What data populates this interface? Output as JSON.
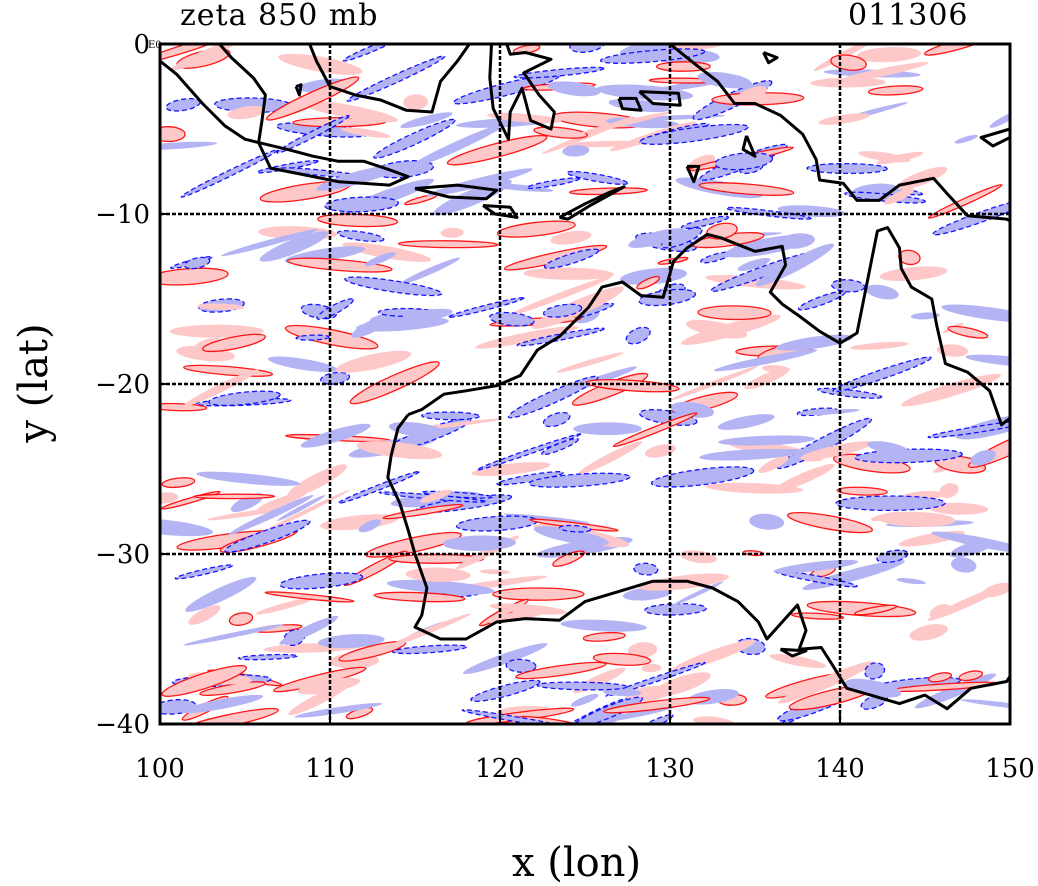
{
  "chart_data": {
    "type": "heatmap",
    "title_left": "zeta 850 mb",
    "title_right": "011306",
    "xlabel": "x (lon)",
    "ylabel": "y (lat)",
    "xlim": [
      100,
      150
    ],
    "ylim": [
      -40,
      0
    ],
    "x_ticks": [
      "100",
      "110",
      "120",
      "130",
      "140",
      "150"
    ],
    "y_ticks": [
      "0",
      "−10",
      "−20",
      "−30",
      "−40"
    ],
    "y_tick_exponent": "E0",
    "grid": true,
    "colors": {
      "positive_fill": "#ffc8c8",
      "positive_line": "#ff0000",
      "negative_fill": "#b4b4f5",
      "negative_line": "#0000ff",
      "coastline": "#000000"
    },
    "coastline_lonlat": [
      [
        [
          114.6,
          -21.8
        ],
        [
          114.0,
          -22.6
        ],
        [
          113.6,
          -24.2
        ],
        [
          113.4,
          -25.5
        ],
        [
          114.1,
          -27.0
        ],
        [
          114.6,
          -28.6
        ],
        [
          115.0,
          -30.0
        ],
        [
          115.7,
          -32.0
        ],
        [
          115.4,
          -33.6
        ],
        [
          115.0,
          -34.3
        ],
        [
          116.5,
          -35.0
        ],
        [
          118.0,
          -35.0
        ],
        [
          119.8,
          -34.0
        ],
        [
          121.5,
          -33.8
        ],
        [
          123.5,
          -33.9
        ],
        [
          125.0,
          -32.8
        ],
        [
          127.0,
          -32.2
        ],
        [
          129.0,
          -31.6
        ],
        [
          131.0,
          -31.6
        ],
        [
          132.5,
          -32.0
        ],
        [
          134.0,
          -32.8
        ],
        [
          135.2,
          -34.0
        ],
        [
          135.7,
          -35.0
        ],
        [
          136.6,
          -34.0
        ],
        [
          137.5,
          -33.0
        ],
        [
          138.0,
          -34.5
        ],
        [
          137.6,
          -35.6
        ],
        [
          138.9,
          -35.5
        ],
        [
          139.6,
          -36.6
        ],
        [
          140.4,
          -37.9
        ],
        [
          141.8,
          -38.3
        ],
        [
          143.5,
          -38.8
        ],
        [
          145.0,
          -38.3
        ],
        [
          146.3,
          -39.1
        ],
        [
          147.7,
          -37.9
        ],
        [
          149.8,
          -37.5
        ],
        [
          150.0,
          -37.2
        ]
      ],
      [
        [
          150.0,
          -22.0
        ],
        [
          149.5,
          -22.4
        ],
        [
          148.8,
          -20.4
        ],
        [
          147.5,
          -19.3
        ],
        [
          146.2,
          -18.8
        ],
        [
          145.7,
          -16.6
        ],
        [
          145.4,
          -15.0
        ],
        [
          144.2,
          -14.3
        ],
        [
          143.6,
          -13.2
        ],
        [
          143.5,
          -12.0
        ],
        [
          142.8,
          -10.8
        ],
        [
          142.2,
          -11.0
        ],
        [
          141.8,
          -13.0
        ],
        [
          141.4,
          -15.0
        ],
        [
          141.0,
          -17.0
        ],
        [
          140.0,
          -17.6
        ],
        [
          138.8,
          -16.9
        ],
        [
          137.6,
          -16.0
        ],
        [
          136.6,
          -15.3
        ],
        [
          135.9,
          -14.6
        ],
        [
          136.8,
          -13.0
        ],
        [
          136.6,
          -11.9
        ],
        [
          135.0,
          -12.2
        ],
        [
          133.0,
          -11.4
        ],
        [
          132.2,
          -11.2
        ],
        [
          131.0,
          -12.0
        ],
        [
          130.2,
          -12.8
        ],
        [
          129.6,
          -14.9
        ],
        [
          128.3,
          -14.8
        ],
        [
          127.2,
          -14.0
        ],
        [
          126.0,
          -14.3
        ],
        [
          125.2,
          -15.5
        ],
        [
          124.3,
          -16.4
        ],
        [
          123.5,
          -17.2
        ],
        [
          122.2,
          -18.0
        ],
        [
          121.2,
          -19.5
        ],
        [
          119.8,
          -20.1
        ],
        [
          118.0,
          -20.4
        ],
        [
          116.7,
          -20.6
        ],
        [
          115.4,
          -21.5
        ],
        [
          114.6,
          -21.8
        ]
      ],
      [
        [
          105.8,
          -5.8
        ],
        [
          107.5,
          -6.2
        ],
        [
          109.0,
          -6.6
        ],
        [
          110.5,
          -6.9
        ],
        [
          112.0,
          -6.9
        ],
        [
          113.5,
          -7.4
        ],
        [
          114.6,
          -7.8
        ],
        [
          113.5,
          -8.3
        ],
        [
          112.0,
          -8.2
        ],
        [
          110.5,
          -8.1
        ],
        [
          108.5,
          -7.7
        ],
        [
          106.5,
          -7.3
        ],
        [
          105.8,
          -5.8
        ]
      ],
      [
        [
          100.0,
          -1.0
        ],
        [
          101.0,
          -1.8
        ],
        [
          102.5,
          -3.5
        ],
        [
          103.8,
          -4.8
        ],
        [
          105.0,
          -5.6
        ],
        [
          105.8,
          -5.8
        ],
        [
          106.0,
          -4.5
        ],
        [
          106.2,
          -3.0
        ],
        [
          105.5,
          -2.0
        ],
        [
          104.2,
          -0.8
        ],
        [
          103.5,
          0.0
        ]
      ],
      [
        [
          108.8,
          0.0
        ],
        [
          109.2,
          -1.0
        ],
        [
          110.0,
          -2.5
        ],
        [
          111.5,
          -3.0
        ],
        [
          113.0,
          -3.3
        ],
        [
          114.5,
          -3.9
        ],
        [
          116.0,
          -4.0
        ],
        [
          116.5,
          -2.2
        ],
        [
          117.5,
          -1.0
        ],
        [
          118.2,
          0.0
        ]
      ],
      [
        [
          119.5,
          0.0
        ],
        [
          119.4,
          -2.0
        ],
        [
          119.6,
          -3.8
        ],
        [
          120.5,
          -5.6
        ],
        [
          120.6,
          -4.0
        ],
        [
          121.3,
          -2.6
        ],
        [
          121.8,
          -4.5
        ],
        [
          123.0,
          -5.0
        ],
        [
          123.2,
          -4.0
        ],
        [
          122.3,
          -3.0
        ],
        [
          121.4,
          -1.7
        ],
        [
          123.0,
          -0.9
        ],
        [
          121.5,
          -0.5
        ],
        [
          120.6,
          -0.6
        ],
        [
          120.4,
          0.0
        ]
      ],
      [
        [
          115.0,
          -8.5
        ],
        [
          117.5,
          -8.3
        ],
        [
          119.8,
          -8.6
        ],
        [
          119.2,
          -9.1
        ],
        [
          117.0,
          -9.0
        ],
        [
          115.0,
          -8.5
        ]
      ],
      [
        [
          119.0,
          -9.5
        ],
        [
          120.6,
          -9.6
        ],
        [
          121.0,
          -10.2
        ],
        [
          119.7,
          -10.0
        ],
        [
          119.0,
          -9.5
        ]
      ],
      [
        [
          123.5,
          -10.2
        ],
        [
          125.0,
          -9.4
        ],
        [
          126.5,
          -8.7
        ],
        [
          127.3,
          -8.4
        ],
        [
          125.3,
          -9.5
        ],
        [
          124.0,
          -10.3
        ],
        [
          123.5,
          -10.2
        ]
      ],
      [
        [
          130.0,
          0.0
        ],
        [
          131.5,
          -1.2
        ],
        [
          132.8,
          -2.2
        ],
        [
          133.8,
          -3.5
        ],
        [
          135.0,
          -3.5
        ],
        [
          136.5,
          -4.2
        ],
        [
          137.8,
          -5.3
        ],
        [
          138.6,
          -6.8
        ],
        [
          138.8,
          -8.0
        ],
        [
          140.2,
          -8.2
        ],
        [
          141.0,
          -9.2
        ],
        [
          142.3,
          -9.2
        ],
        [
          143.5,
          -8.3
        ],
        [
          145.5,
          -7.9
        ],
        [
          146.3,
          -8.8
        ],
        [
          147.5,
          -10.1
        ],
        [
          149.8,
          -10.3
        ],
        [
          150.0,
          -10.4
        ]
      ],
      [
        [
          134.5,
          -5.4
        ],
        [
          135.0,
          -6.6
        ],
        [
          134.3,
          -6.2
        ],
        [
          134.5,
          -5.4
        ]
      ],
      [
        [
          131.0,
          -7.2
        ],
        [
          131.7,
          -7.2
        ],
        [
          131.4,
          -8.1
        ],
        [
          131.0,
          -7.2
        ]
      ],
      [
        [
          127.0,
          -3.2
        ],
        [
          128.0,
          -3.2
        ],
        [
          128.3,
          -3.9
        ],
        [
          127.2,
          -3.8
        ],
        [
          127.0,
          -3.2
        ]
      ],
      [
        [
          128.2,
          -2.8
        ],
        [
          130.5,
          -2.9
        ],
        [
          130.6,
          -3.6
        ],
        [
          129.0,
          -3.5
        ],
        [
          128.2,
          -2.8
        ]
      ],
      [
        [
          108.0,
          -2.5
        ],
        [
          108.3,
          -2.4
        ],
        [
          108.2,
          -3.0
        ],
        [
          108.0,
          -2.5
        ]
      ],
      [
        [
          135.5,
          -0.5
        ],
        [
          136.3,
          -0.8
        ],
        [
          135.8,
          -1.1
        ],
        [
          135.5,
          -0.5
        ]
      ],
      [
        [
          150.0,
          -5.5
        ],
        [
          149.0,
          -6.0
        ],
        [
          148.3,
          -5.5
        ],
        [
          150.0,
          -5.0
        ]
      ],
      [
        [
          136.5,
          -35.6
        ],
        [
          138.0,
          -35.7
        ],
        [
          137.2,
          -36.0
        ],
        [
          136.5,
          -35.6
        ]
      ]
    ]
  }
}
